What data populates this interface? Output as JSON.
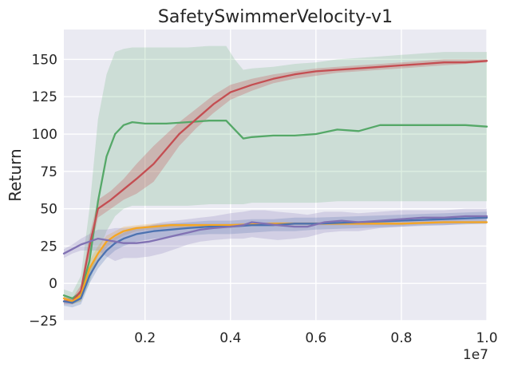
{
  "chart_data": {
    "type": "line",
    "title": "SafetySwimmerVelocity-v1",
    "xlabel": "",
    "ylabel": "Return",
    "x_offset_label": "1e7",
    "xlim": [
      0.01,
      1.0
    ],
    "ylim": [
      -25,
      170
    ],
    "x_ticks": [
      0.2,
      0.4,
      0.6,
      0.8,
      1.0
    ],
    "x_tick_labels": [
      "0.2",
      "0.4",
      "0.6",
      "0.8",
      "1.0"
    ],
    "y_ticks": [
      -25,
      0,
      25,
      50,
      75,
      100,
      125,
      150
    ],
    "y_tick_labels": [
      "−25",
      "0",
      "25",
      "50",
      "75",
      "100",
      "125",
      "150"
    ],
    "grid": true,
    "background": "#EAEAF2",
    "series": [
      {
        "name": "green",
        "color": "#55A868",
        "x": [
          0.01,
          0.03,
          0.05,
          0.07,
          0.09,
          0.11,
          0.13,
          0.15,
          0.17,
          0.2,
          0.25,
          0.3,
          0.35,
          0.39,
          0.41,
          0.43,
          0.45,
          0.5,
          0.55,
          0.6,
          0.65,
          0.7,
          0.75,
          0.8,
          0.85,
          0.9,
          0.95,
          1.0
        ],
        "y": [
          -8,
          -10,
          -6,
          15,
          55,
          85,
          100,
          106,
          108,
          107,
          107,
          108,
          109,
          109,
          103,
          97,
          98,
          99,
          99,
          100,
          103,
          102,
          106,
          106,
          106,
          106,
          106,
          105
        ],
        "lower": [
          -12,
          -14,
          -12,
          0,
          20,
          35,
          45,
          50,
          52,
          52,
          52,
          52,
          53,
          53,
          53,
          53,
          54,
          54,
          54,
          54,
          55,
          55,
          55,
          55,
          55,
          55,
          55,
          55
        ],
        "upper": [
          -4,
          -6,
          5,
          50,
          110,
          140,
          155,
          157,
          158,
          158,
          158,
          158,
          159,
          159,
          150,
          143,
          144,
          145,
          147,
          148,
          150,
          151,
          152,
          153,
          154,
          155,
          155,
          155
        ]
      },
      {
        "name": "red",
        "color": "#C44E52",
        "x": [
          0.01,
          0.03,
          0.05,
          0.07,
          0.09,
          0.12,
          0.15,
          0.18,
          0.22,
          0.25,
          0.28,
          0.32,
          0.36,
          0.4,
          0.45,
          0.5,
          0.55,
          0.6,
          0.65,
          0.7,
          0.75,
          0.8,
          0.85,
          0.9,
          0.95,
          1.0
        ],
        "y": [
          -12,
          -12,
          -5,
          25,
          50,
          56,
          63,
          70,
          80,
          90,
          100,
          110,
          120,
          128,
          133,
          137,
          140,
          142,
          143,
          144,
          145,
          146,
          147,
          148,
          148,
          149
        ],
        "lower": [
          -14,
          -14,
          -9,
          18,
          44,
          50,
          56,
          60,
          68,
          80,
          92,
          104,
          114,
          123,
          129,
          134,
          137,
          139,
          141,
          142,
          143,
          144,
          145,
          146,
          147,
          148
        ],
        "upper": [
          -10,
          -10,
          -1,
          32,
          56,
          62,
          70,
          80,
          92,
          100,
          108,
          117,
          126,
          133,
          137,
          140,
          142,
          144,
          145,
          146,
          147,
          148,
          149,
          150,
          150,
          150
        ]
      },
      {
        "name": "orange",
        "color": "#F5A623",
        "x": [
          0.01,
          0.03,
          0.05,
          0.07,
          0.09,
          0.11,
          0.13,
          0.15,
          0.18,
          0.22,
          0.26,
          0.3,
          0.35,
          0.4,
          0.5,
          0.6,
          0.7,
          0.8,
          0.9,
          1.0
        ],
        "y": [
          -10,
          -12,
          -8,
          10,
          20,
          28,
          32,
          35,
          37,
          38,
          39,
          39,
          39,
          39,
          40,
          40,
          40,
          40,
          41,
          41
        ],
        "lower": [
          -12,
          -14,
          -12,
          5,
          15,
          24,
          29,
          32,
          35,
          36,
          37,
          37,
          38,
          38,
          39,
          39,
          39,
          39,
          40,
          40
        ],
        "upper": [
          -8,
          -10,
          -4,
          15,
          25,
          32,
          35,
          38,
          39,
          40,
          40,
          40,
          40,
          40,
          41,
          41,
          41,
          41,
          42,
          42
        ]
      },
      {
        "name": "blue",
        "color": "#4C72B0",
        "x": [
          0.01,
          0.03,
          0.05,
          0.07,
          0.09,
          0.11,
          0.13,
          0.15,
          0.18,
          0.22,
          0.26,
          0.3,
          0.35,
          0.4,
          0.45,
          0.5,
          0.55,
          0.6,
          0.7,
          0.8,
          0.9,
          1.0
        ],
        "y": [
          -12,
          -13,
          -10,
          5,
          15,
          22,
          27,
          30,
          33,
          35,
          36,
          37,
          38,
          38,
          39,
          39,
          40,
          40,
          41,
          42,
          43,
          44
        ],
        "lower": [
          -15,
          -16,
          -14,
          0,
          10,
          17,
          22,
          25,
          28,
          30,
          31,
          32,
          33,
          33,
          34,
          35,
          35,
          36,
          37,
          38,
          39,
          40
        ],
        "upper": [
          -9,
          -10,
          -6,
          10,
          20,
          27,
          31,
          34,
          37,
          39,
          40,
          41,
          42,
          42,
          43,
          43,
          44,
          44,
          45,
          46,
          47,
          48
        ]
      },
      {
        "name": "purple",
        "color": "#8172B3",
        "x": [
          0.01,
          0.03,
          0.05,
          0.07,
          0.09,
          0.11,
          0.13,
          0.15,
          0.18,
          0.21,
          0.24,
          0.27,
          0.3,
          0.33,
          0.36,
          0.4,
          0.43,
          0.45,
          0.48,
          0.51,
          0.55,
          0.58,
          0.62,
          0.66,
          0.7,
          0.75,
          0.8,
          0.85,
          0.9,
          0.95,
          1.0
        ],
        "y": [
          20,
          23,
          26,
          28,
          30,
          29,
          28,
          27,
          27,
          28,
          30,
          32,
          34,
          36,
          37,
          38,
          39,
          41,
          40,
          39,
          38,
          38,
          41,
          42,
          41,
          42,
          43,
          44,
          44,
          45,
          45
        ],
        "lower": [
          17,
          20,
          22,
          22,
          22,
          18,
          15,
          17,
          17,
          18,
          20,
          23,
          26,
          28,
          29,
          30,
          30,
          31,
          30,
          29,
          30,
          31,
          34,
          35,
          35,
          37,
          38,
          39,
          39,
          40,
          40
        ],
        "upper": [
          23,
          26,
          30,
          33,
          36,
          36,
          37,
          37,
          38,
          39,
          41,
          42,
          43,
          44,
          45,
          47,
          48,
          49,
          49,
          48,
          47,
          46,
          48,
          48,
          47,
          48,
          49,
          49,
          49,
          50,
          50
        ]
      }
    ],
    "draw_order": [
      "green",
      "red",
      "orange",
      "blue",
      "purple"
    ]
  }
}
